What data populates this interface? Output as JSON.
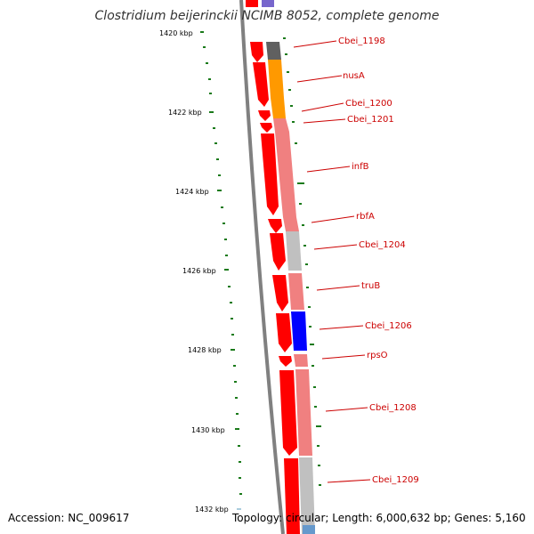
{
  "title": "Clostridium beijerinckii NCIMB 8052, complete genome",
  "accession": "Accession: NC_009617",
  "topology": "Topology: circular; Length: 6,000,632 bp; Genes: 5,160",
  "ruler_labels": [
    "1420 kbp",
    "1422 kbp",
    "1424 kbp",
    "1426 kbp",
    "1428 kbp",
    "1430 kbp",
    "1432 kbp"
  ],
  "genes": [
    {
      "name": "Cbei_1198",
      "category_color": "#606060"
    },
    {
      "name": "nusA",
      "category_color": "#ff9900"
    },
    {
      "name": "Cbei_1200",
      "category_color": "#ff9900"
    },
    {
      "name": "Cbei_1201",
      "category_color": "#f08080"
    },
    {
      "name": "infB",
      "category_color": "#f08080"
    },
    {
      "name": "rbfA",
      "category_color": "#f08080"
    },
    {
      "name": "Cbei_1204",
      "category_color": "#c0c0c0"
    },
    {
      "name": "truB",
      "category_color": "#f08080"
    },
    {
      "name": "Cbei_1206",
      "category_color": "#0000ff"
    },
    {
      "name": "rpsO",
      "category_color": "#f08080"
    },
    {
      "name": "Cbei_1208",
      "category_color": "#f08080"
    },
    {
      "name": "Cbei_1209",
      "category_color": "#c0c0c0"
    }
  ],
  "colors": {
    "cds": "#ff0000",
    "backbone": "#808080",
    "label": "#cc0000",
    "gc_skew": "#1a7a1a",
    "ruler_tick": "#1a7a1a"
  }
}
